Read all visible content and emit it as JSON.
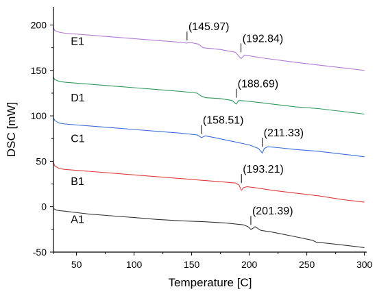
{
  "chart_data": {
    "type": "line",
    "title": "",
    "xlabel": "Temperature [C]",
    "ylabel": "DSC [mW]",
    "xlim": [
      30,
      302
    ],
    "ylim": [
      -50,
      220
    ],
    "xticks": [
      50,
      100,
      150,
      200,
      250,
      300
    ],
    "yticks": [
      -50,
      0,
      50,
      100,
      150,
      200
    ],
    "grid": false,
    "legend": "none",
    "series": [
      {
        "name": "A1",
        "color": "#333333",
        "x": [
          30,
          33,
          40,
          60,
          80,
          100,
          120,
          140,
          160,
          180,
          195,
          199,
          201.39,
          203,
          205,
          210,
          220,
          240,
          255,
          258,
          262,
          280,
          300
        ],
        "y": [
          -2,
          -4,
          -5,
          -8,
          -10,
          -12,
          -14,
          -15.5,
          -16.5,
          -18,
          -20,
          -22,
          -25,
          -24,
          -22,
          -26,
          -28,
          -33,
          -37,
          -39,
          -39.5,
          -42,
          -45
        ],
        "label_pos": [
          45,
          -18
        ],
        "annotations": [
          {
            "x": 201.39,
            "y": -20,
            "text": "(201.39)"
          }
        ]
      },
      {
        "name": "B1",
        "color": "#e03c3c",
        "x": [
          30,
          31,
          35,
          40,
          60,
          80,
          100,
          120,
          140,
          160,
          180,
          188,
          191,
          193.21,
          195,
          198,
          205,
          220,
          240,
          260,
          280,
          300
        ],
        "y": [
          49,
          45,
          42,
          41,
          39,
          37,
          35,
          33,
          31,
          29,
          27,
          26,
          24,
          18,
          21,
          22,
          21,
          18,
          15,
          12,
          8,
          5
        ],
        "label_pos": [
          45,
          24
        ],
        "annotations": [
          {
            "x": 193.21,
            "y": 26,
            "text": "(193.21)"
          }
        ]
      },
      {
        "name": "C1",
        "color": "#3a6fd8",
        "x": [
          30,
          31,
          35,
          40,
          60,
          80,
          100,
          120,
          140,
          155,
          158.51,
          162,
          170,
          185,
          200,
          208,
          211.33,
          213,
          216,
          225,
          240,
          260,
          280,
          300
        ],
        "y": [
          98,
          95,
          92,
          91,
          89,
          87,
          85,
          83,
          81,
          79,
          76,
          78,
          76,
          72,
          68,
          64,
          59,
          64,
          66,
          65,
          63,
          61,
          58,
          55
        ],
        "label_pos": [
          45,
          71
        ],
        "annotations": [
          {
            "x": 158.51,
            "y": 80,
            "text": "(158.51)"
          },
          {
            "x": 211.33,
            "y": 66,
            "text": "(211.33)"
          }
        ]
      },
      {
        "name": "D1",
        "color": "#2e9a5a",
        "x": [
          30,
          31,
          35,
          40,
          60,
          80,
          100,
          120,
          140,
          155,
          158,
          162,
          175,
          185,
          188.69,
          191,
          200,
          220,
          240,
          260,
          280,
          300
        ],
        "y": [
          143,
          140,
          138,
          137,
          135,
          133,
          131,
          129,
          127,
          125,
          122,
          120,
          119,
          117,
          113,
          117,
          116,
          113,
          110,
          108,
          105,
          102
        ],
        "label_pos": [
          45,
          116
        ],
        "annotations": [
          {
            "x": 188.69,
            "y": 120,
            "text": "(188.69)"
          }
        ]
      },
      {
        "name": "E1",
        "color": "#b37ad6",
        "x": [
          30,
          31,
          35,
          40,
          60,
          80,
          100,
          120,
          140,
          145.97,
          148,
          156,
          160,
          175,
          188,
          192.84,
          196,
          210,
          240,
          260,
          280,
          300
        ],
        "y": [
          198,
          194,
          192,
          191,
          189,
          187,
          185,
          183,
          181,
          180,
          181,
          179,
          175,
          173,
          170,
          163,
          167,
          164,
          159,
          156,
          153,
          150
        ],
        "label_pos": [
          45,
          178
        ],
        "annotations": [
          {
            "x": 145.97,
            "y": 183,
            "text": "(145.97)"
          },
          {
            "x": 192.84,
            "y": 170,
            "text": "(192.84)"
          }
        ]
      }
    ]
  }
}
